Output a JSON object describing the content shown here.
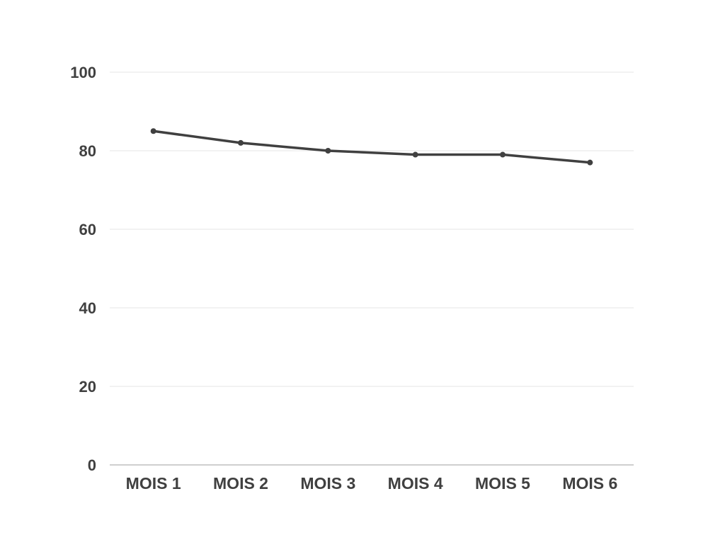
{
  "chart_data": {
    "type": "line",
    "title": "",
    "xlabel": "",
    "ylabel": "",
    "categories": [
      "MOIS 1",
      "MOIS 2",
      "MOIS 3",
      "MOIS 4",
      "MOIS 5",
      "MOIS 6"
    ],
    "series": [
      {
        "values": [
          85,
          82,
          80,
          79,
          79,
          77
        ]
      }
    ],
    "ylim": [
      0,
      100
    ],
    "yticks": [
      "0",
      "20",
      "40",
      "60",
      "80",
      "100"
    ],
    "grid": true,
    "legend": "none",
    "colors": {
      "line": "#404040",
      "grid": "#e6e6e6",
      "axis": "#bfbfbf",
      "tick_text": "#404040"
    }
  }
}
